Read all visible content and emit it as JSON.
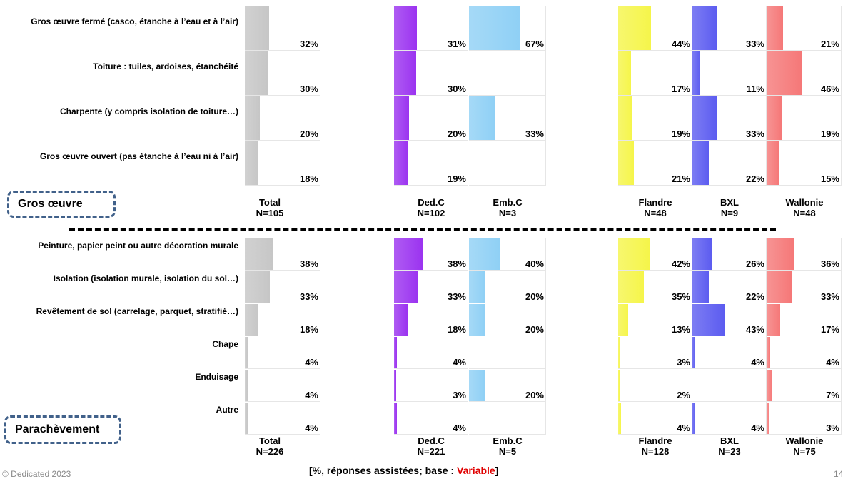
{
  "colors": {
    "Total": "#c6c6c6",
    "Ded.C": "#9b33f0",
    "Emb.C": "#8fd0f5",
    "Flandre": "#f5f54a",
    "BXL": "#5c5cf0",
    "Wallonie": "#f57878"
  },
  "sections": [
    {
      "title": "Gros œuvre",
      "categories": [
        "Gros œuvre fermé (casco, étanche à l’eau et à l’air)",
        "Toiture : tuiles, ardoises, étanchéité",
        "Charpente (y compris isolation de toiture…)",
        "Gros œuvre ouvert (pas étanche à l’eau ni à l’air)"
      ],
      "series": [
        {
          "name": "Total",
          "n": "N=105",
          "values": [
            32,
            30,
            20,
            18
          ]
        },
        {
          "name": "Ded.C",
          "n": "N=102",
          "values": [
            31,
            30,
            20,
            19
          ]
        },
        {
          "name": "Emb.C",
          "n": "N=3",
          "values": [
            67,
            null,
            33,
            null
          ]
        },
        {
          "name": "Flandre",
          "n": "N=48",
          "values": [
            44,
            17,
            19,
            21
          ]
        },
        {
          "name": "BXL",
          "n": "N=9",
          "values": [
            33,
            11,
            33,
            22
          ]
        },
        {
          "name": "Wallonie",
          "n": "N=48",
          "values": [
            21,
            46,
            19,
            15
          ]
        }
      ]
    },
    {
      "title": "Parachèvement",
      "categories": [
        "Peinture, papier peint ou autre décoration murale",
        "Isolation (isolation murale, isolation du sol…)",
        "Revêtement de sol (carrelage, parquet, stratifié…)",
        "Chape",
        "Enduisage",
        "Autre"
      ],
      "series": [
        {
          "name": "Total",
          "n": "N=226",
          "values": [
            38,
            33,
            18,
            4,
            4,
            4
          ]
        },
        {
          "name": "Ded.C",
          "n": "N=221",
          "values": [
            38,
            33,
            18,
            4,
            3,
            4
          ]
        },
        {
          "name": "Emb.C",
          "n": "N=5",
          "values": [
            40,
            20,
            20,
            null,
            20,
            null
          ]
        },
        {
          "name": "Flandre",
          "n": "N=128",
          "values": [
            42,
            35,
            13,
            3,
            2,
            4
          ]
        },
        {
          "name": "BXL",
          "n": "N=23",
          "values": [
            26,
            22,
            43,
            4,
            null,
            4
          ]
        },
        {
          "name": "Wallonie",
          "n": "N=75",
          "values": [
            36,
            33,
            17,
            4,
            7,
            3
          ]
        }
      ]
    }
  ],
  "chart_data": {
    "type": "bar",
    "orientation": "vertical",
    "unit": "%",
    "note": "[%, réponses assistées; base : Variable]"
  },
  "footer": {
    "copyright": "© Dedicated 2023",
    "page": "14",
    "note_prefix": "[%, réponses assistées; base : ",
    "note_highlight": "Variable",
    "note_suffix": "]"
  }
}
